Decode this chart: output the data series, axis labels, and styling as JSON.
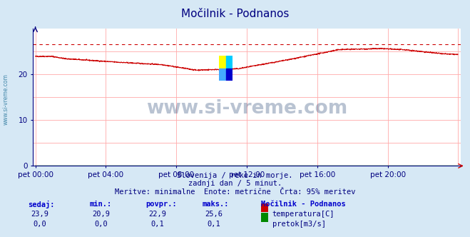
{
  "title": "Močilnik - Podnanos",
  "title_color": "#000080",
  "bg_color": "#d6e8f5",
  "plot_bg_color": "#ffffff",
  "grid_color": "#ffaaaa",
  "axis_color": "#000080",
  "xlabel_ticks": [
    "pet 00:00",
    "pet 04:00",
    "pet 08:00",
    "pet 12:00",
    "pet 16:00",
    "pet 20:00"
  ],
  "xlabel_tick_positions": [
    0,
    288,
    576,
    864,
    1152,
    1440
  ],
  "total_points": 1728,
  "ylim": [
    0,
    30
  ],
  "yticks": [
    0,
    10,
    20
  ],
  "temp_color": "#cc0000",
  "flow_color": "#008800",
  "dashed_line_color": "#cc0000",
  "dashed_line_y": 26.5,
  "temp_min": 20.9,
  "temp_max": 25.6,
  "temp_avg": 22.9,
  "temp_now": 23.9,
  "flow_min": 0.0,
  "flow_max": 0.1,
  "flow_avg": 0.1,
  "flow_now": 0.0,
  "watermark": "www.si-vreme.com",
  "watermark_color": "#1a3a6b",
  "watermark_alpha": 0.3,
  "footer_line1": "Slovenija / reke in morje.",
  "footer_line2": "zadnji dan / 5 minut.",
  "footer_line3": "Meritve: minimalne  Enote: metrične  Črta: 95% meritev",
  "footer_color": "#000080",
  "table_label_color": "#0000cc",
  "table_value_color": "#000080",
  "station_name": "Močilnik - Podnanos",
  "table_row1": [
    "23,9",
    "20,9",
    "22,9",
    "25,6"
  ],
  "table_row2": [
    "0,0",
    "0,0",
    "0,1",
    "0,1"
  ],
  "label_temp": "temperatura[C]",
  "label_flow": "pretok[m3/s]",
  "left_label": "www.si-vreme.com",
  "left_label_color": "#4488aa"
}
